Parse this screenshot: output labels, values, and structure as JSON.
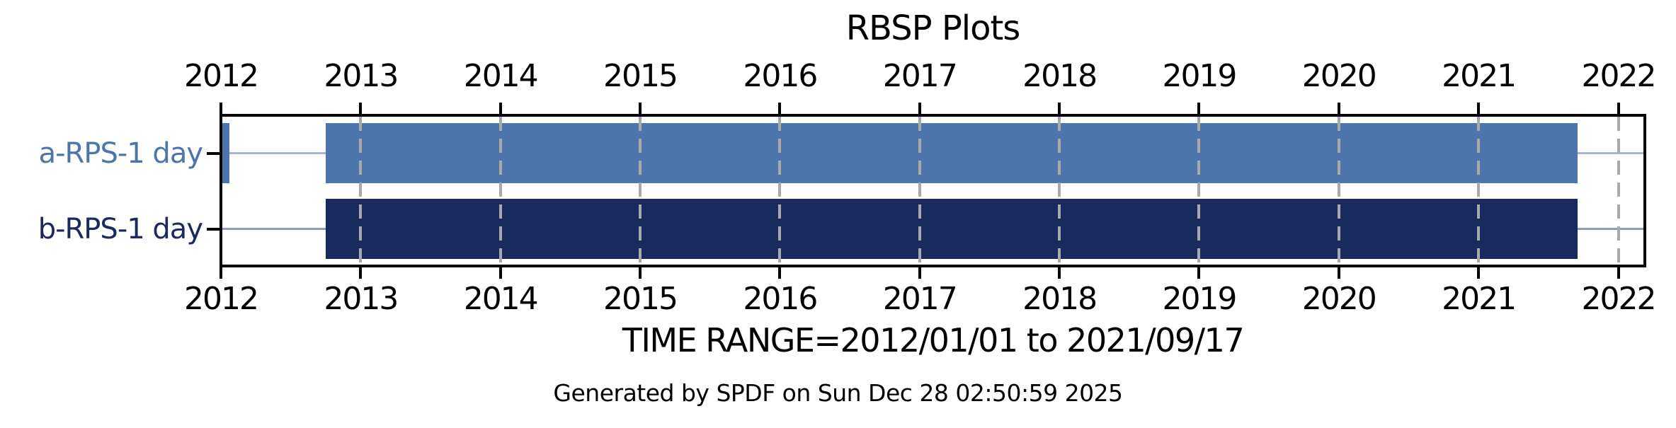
{
  "title": "RBSP Plots",
  "footer": {
    "time_range_label": "TIME RANGE=2012/01/01 to 2021/09/17",
    "generated_label": "Generated by SPDF on Sun Dec 28 02:50:59 2025"
  },
  "colors": {
    "background": "#ffffff",
    "axis": "#000000",
    "gridline": "#a9a9a9",
    "series_a": "#4c76ab",
    "series_b": "#1b2a5e",
    "row_line_a": "#a3b8d8",
    "row_line_b": "#8e9cc4"
  },
  "chart_data": {
    "type": "timeline",
    "title": "RBSP Plots",
    "x_axis": {
      "tick_values": [
        2012,
        2013,
        2014,
        2015,
        2016,
        2017,
        2018,
        2019,
        2020,
        2021,
        2022
      ],
      "tick_labels": [
        "2012",
        "2013",
        "2014",
        "2015",
        "2016",
        "2017",
        "2018",
        "2019",
        "2020",
        "2021",
        "2022"
      ],
      "xlim": [
        2012.0,
        2022.19
      ],
      "labels_shown_on": [
        "top",
        "bottom"
      ],
      "gridlines": "dashed-vertical-per-year"
    },
    "time_range": {
      "start": "2012/01/01",
      "end": "2021/09/17"
    },
    "rows": [
      {
        "label": "a-RPS-1 day",
        "color": "#4c76ab",
        "line_color": "#a3b8d8",
        "segments": [
          {
            "start": 2012.0,
            "end": 2012.06
          },
          {
            "start": 2012.75,
            "end": 2021.71
          }
        ]
      },
      {
        "label": "b-RPS-1 day",
        "color": "#1b2a5e",
        "line_color": "#8e9cc4",
        "segments": [
          {
            "start": 2012.75,
            "end": 2021.71
          }
        ]
      }
    ]
  }
}
